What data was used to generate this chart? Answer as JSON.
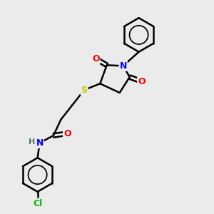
{
  "bg_color": "#ebebeb",
  "atom_colors": {
    "O": "#ff0000",
    "N": "#0000ff",
    "S": "#cccc00",
    "Cl": "#00bb00",
    "C": "#000000",
    "H": "#557777"
  },
  "bond_color": "#000000",
  "bond_width": 1.8
}
